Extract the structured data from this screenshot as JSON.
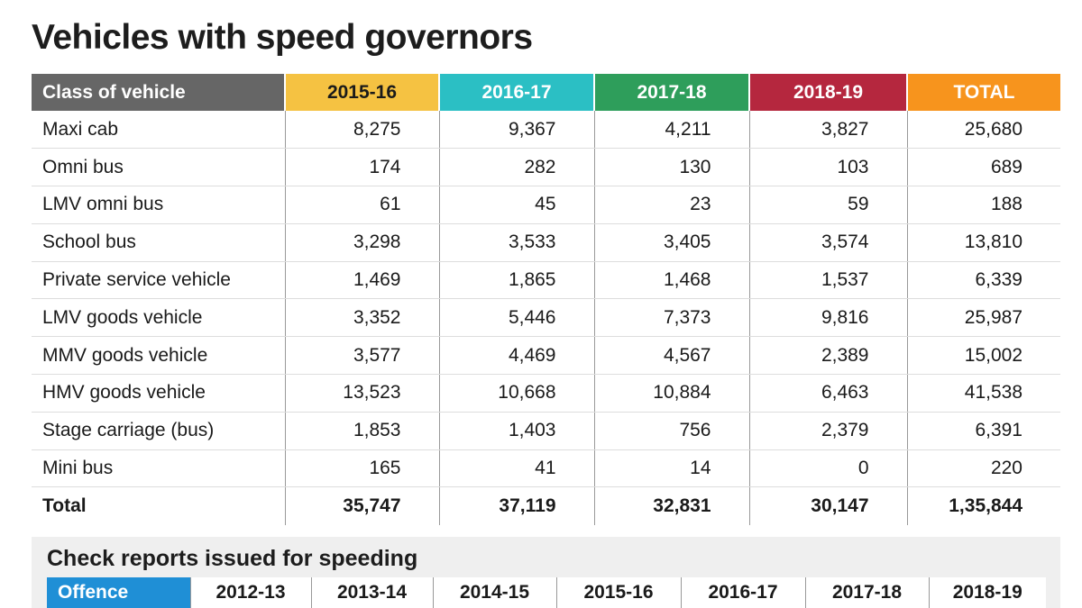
{
  "title": "Vehicles with speed governors",
  "table": {
    "header": [
      "Class of vehicle",
      "2015-16",
      "2016-17",
      "2017-18",
      "2018-19",
      "TOTAL"
    ],
    "rows": [
      [
        "Maxi cab",
        "8,275",
        "9,367",
        "4,211",
        "3,827",
        "25,680"
      ],
      [
        "Omni bus",
        "174",
        "282",
        "130",
        "103",
        "689"
      ],
      [
        "LMV omni bus",
        "61",
        "45",
        "23",
        "59",
        "188"
      ],
      [
        "School bus",
        "3,298",
        "3,533",
        "3,405",
        "3,574",
        "13,810"
      ],
      [
        "Private service vehicle",
        "1,469",
        "1,865",
        "1,468",
        "1,537",
        "6,339"
      ],
      [
        "LMV goods vehicle",
        "3,352",
        "5,446",
        "7,373",
        "9,816",
        "25,987"
      ],
      [
        "MMV goods vehicle",
        "3,577",
        "4,469",
        "4,567",
        "2,389",
        "15,002"
      ],
      [
        "HMV goods vehicle",
        "13,523",
        "10,668",
        "10,884",
        "6,463",
        "41,538"
      ],
      [
        "Stage carriage (bus)",
        "1,853",
        "1,403",
        "756",
        "2,379",
        "6,391"
      ],
      [
        "Mini bus",
        "165",
        "41",
        "14",
        "0",
        "220"
      ],
      [
        "Total",
        "35,747",
        "37,119",
        "32,831",
        "30,147",
        "1,35,844"
      ]
    ]
  },
  "check_reports": {
    "title": "Check reports issued for speeding",
    "header": [
      "Offence",
      "2012-13",
      "2013-14",
      "2014-15",
      "2015-16",
      "2016-17",
      "2017-18",
      "2018-19"
    ]
  }
}
